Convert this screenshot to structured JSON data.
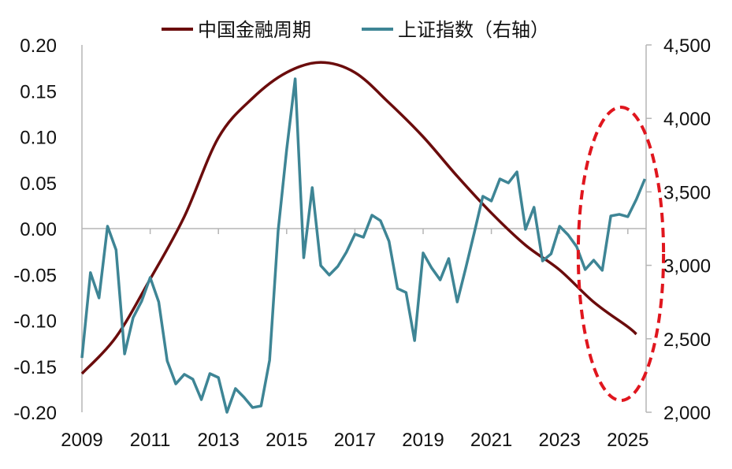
{
  "chart_data": {
    "type": "line",
    "legend": {
      "placement": "top",
      "entries": [
        "中国金融周期",
        "上证指数（右轴）"
      ]
    },
    "x_ticks": [
      "2009",
      "2011",
      "2013",
      "2015",
      "2017",
      "2019",
      "2021",
      "2023",
      "2025"
    ],
    "left_axis": {
      "range": [
        -0.2,
        0.2
      ],
      "ticks": [
        "0.20",
        "0.15",
        "0.10",
        "0.05",
        "0.00",
        "-0.05",
        "-0.10",
        "-0.15",
        "-0.20"
      ],
      "tick_values": [
        0.2,
        0.15,
        0.1,
        0.05,
        0.0,
        -0.05,
        -0.1,
        -0.15,
        -0.2
      ]
    },
    "right_axis": {
      "range": [
        2000,
        4500
      ],
      "ticks": [
        "4,500",
        "4,000",
        "3,500",
        "3,000",
        "2,500",
        "2,000"
      ],
      "tick_values": [
        4500,
        4000,
        3500,
        3000,
        2500,
        2000
      ]
    },
    "x_range": [
      2009,
      2025.5
    ],
    "series": [
      {
        "name": "中国金融周期",
        "axis": "left",
        "color": "#6b0c0c",
        "x": [
          2009,
          2010,
          2011,
          2012,
          2013,
          2014,
          2015,
          2016,
          2017,
          2018,
          2019,
          2020,
          2021,
          2022,
          2023,
          2024,
          2025,
          2025.25
        ],
        "values": [
          -0.158,
          -0.118,
          -0.055,
          0.013,
          0.099,
          0.142,
          0.17,
          0.181,
          0.17,
          0.137,
          0.1,
          0.057,
          0.017,
          -0.018,
          -0.045,
          -0.08,
          -0.107,
          -0.115
        ]
      },
      {
        "name": "上证指数（右轴）",
        "axis": "right",
        "color": "#3e8595",
        "x_start": 2009,
        "x_step": 0.25,
        "values": [
          2370,
          2950,
          2778,
          3266,
          3105,
          2397,
          2644,
          2756,
          2917,
          2751,
          2349,
          2193,
          2258,
          2225,
          2086,
          2263,
          2236,
          2000,
          2161,
          2102,
          2032,
          2043,
          2354,
          3234,
          3787,
          4269,
          3052,
          3529,
          2998,
          2934,
          2993,
          3089,
          3212,
          3191,
          3341,
          3304,
          3164,
          2842,
          2815,
          2488,
          3084,
          2982,
          2901,
          3046,
          2751,
          2982,
          3223,
          3470,
          3438,
          3588,
          3561,
          3636,
          3245,
          3395,
          3030,
          3078,
          3266,
          3207,
          3127,
          2971,
          3035,
          2966,
          3336,
          3347,
          3331,
          3449,
          3588
        ]
      }
    ],
    "annotation": {
      "shape": "dashed-ellipse",
      "color": "#e0161e",
      "x_span": [
        2023.5,
        2026
      ]
    }
  }
}
